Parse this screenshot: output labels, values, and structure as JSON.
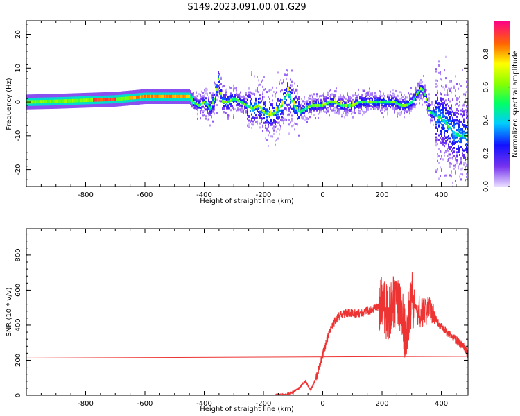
{
  "figure": {
    "title": "S149.2023.091.00.01.G29"
  },
  "chart_data": [
    {
      "type": "heatmap",
      "xlabel": "Height of straight line (km)",
      "ylabel": "Frequency (Hz)",
      "xlim": [
        -1000,
        490
      ],
      "ylim": [
        -25,
        24
      ],
      "xticks": [
        -800,
        -600,
        -400,
        -200,
        0,
        200,
        400
      ],
      "yticks": [
        -20,
        -10,
        0,
        10,
        20
      ],
      "colorbar": {
        "label": "Normalized spectral amplitude",
        "range": [
          0.0,
          1.0
        ],
        "ticks": [
          0.0,
          0.2,
          0.4,
          0.6,
          0.8
        ]
      },
      "ridge": {
        "x": [
          -1000,
          -900,
          -800,
          -700,
          -600,
          -500,
          -450,
          -440,
          -420,
          -400,
          -380,
          -360,
          -355,
          -350,
          -340,
          -320,
          -300,
          -280,
          -260,
          -240,
          -220,
          -200,
          -180,
          -160,
          -140,
          -120,
          -100,
          -80,
          -60,
          -40,
          -20,
          0,
          20,
          40,
          60,
          80,
          100,
          120,
          140,
          160,
          180,
          200,
          220,
          240,
          260,
          280,
          300,
          320,
          330,
          340,
          350,
          360,
          380,
          400,
          420,
          440,
          460
        ],
        "y": [
          0,
          0.2,
          0.5,
          0.8,
          1.6,
          1.6,
          1.6,
          0,
          -1,
          0,
          -2,
          3,
          7,
          5,
          0,
          0,
          1,
          0,
          -1,
          -2,
          -1,
          -3,
          -4,
          -3,
          -1,
          3,
          -1,
          -3,
          -2,
          -1,
          -1,
          -1,
          0,
          0,
          -1,
          -1,
          -1,
          0,
          0,
          0,
          0,
          0,
          0,
          0,
          -1,
          -1,
          0,
          3,
          4,
          3,
          0,
          -3,
          -4,
          -5,
          -7,
          -9,
          -10
        ]
      }
    },
    {
      "type": "line",
      "xlabel": "Height of straight line (km)",
      "ylabel": "SNR (10 * v/v)",
      "xlim": [
        -1000,
        490
      ],
      "ylim": [
        0,
        950
      ],
      "xticks": [
        -800,
        -600,
        -400,
        -200,
        0,
        200,
        400
      ],
      "yticks": [
        0,
        200,
        400,
        600,
        800
      ],
      "series": [
        {
          "color": "#ee3333",
          "x": [
            -1000,
            490
          ],
          "y": [
            212,
            222
          ]
        },
        {
          "color": "#ee3333",
          "x": [
            -160,
            -120,
            -100,
            -80,
            -60,
            -40,
            -20,
            0,
            20,
            40,
            60,
            80,
            100,
            120,
            140,
            160,
            180,
            200,
            220,
            240,
            260,
            280,
            300,
            320,
            340,
            360,
            380,
            400,
            420,
            440,
            460,
            480,
            490
          ],
          "y": [
            2,
            5,
            20,
            40,
            80,
            30,
            110,
            230,
            350,
            420,
            460,
            470,
            470,
            465,
            475,
            485,
            500,
            520,
            460,
            540,
            520,
            330,
            560,
            480,
            470,
            500,
            440,
            390,
            360,
            330,
            300,
            270,
            225
          ]
        }
      ]
    }
  ]
}
